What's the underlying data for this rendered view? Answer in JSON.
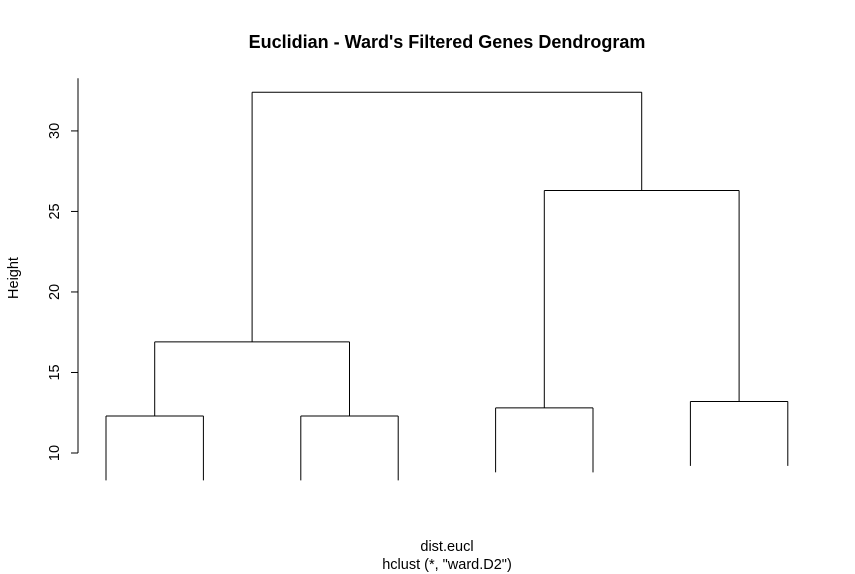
{
  "chart_data": {
    "type": "dendrogram",
    "title": "Euclidian - Ward's Filtered Genes Dendrogram",
    "ylabel": "Height",
    "xlabel": "dist.eucl",
    "sub": "hclust (*, \"ward.D2\")",
    "ylim": [
      10,
      32.4
    ],
    "yticks": [
      "10",
      "15",
      "20",
      "25",
      "30"
    ],
    "leaves": [
      "1",
      "2",
      "3",
      "4",
      "5",
      "6",
      "7",
      "8"
    ],
    "merges": [
      {
        "id": "a",
        "left": "leaf:1",
        "right": "leaf:2",
        "height": 12.3
      },
      {
        "id": "b",
        "left": "leaf:3",
        "right": "leaf:4",
        "height": 12.3
      },
      {
        "id": "c",
        "left": "leaf:5",
        "right": "leaf:6",
        "height": 12.8
      },
      {
        "id": "d",
        "left": "leaf:7",
        "right": "leaf:8",
        "height": 13.2
      },
      {
        "id": "e",
        "left": "a",
        "right": "b",
        "height": 16.9
      },
      {
        "id": "f",
        "left": "c",
        "right": "d",
        "height": 26.3
      },
      {
        "id": "g",
        "left": "e",
        "right": "f",
        "height": 32.4
      }
    ]
  }
}
